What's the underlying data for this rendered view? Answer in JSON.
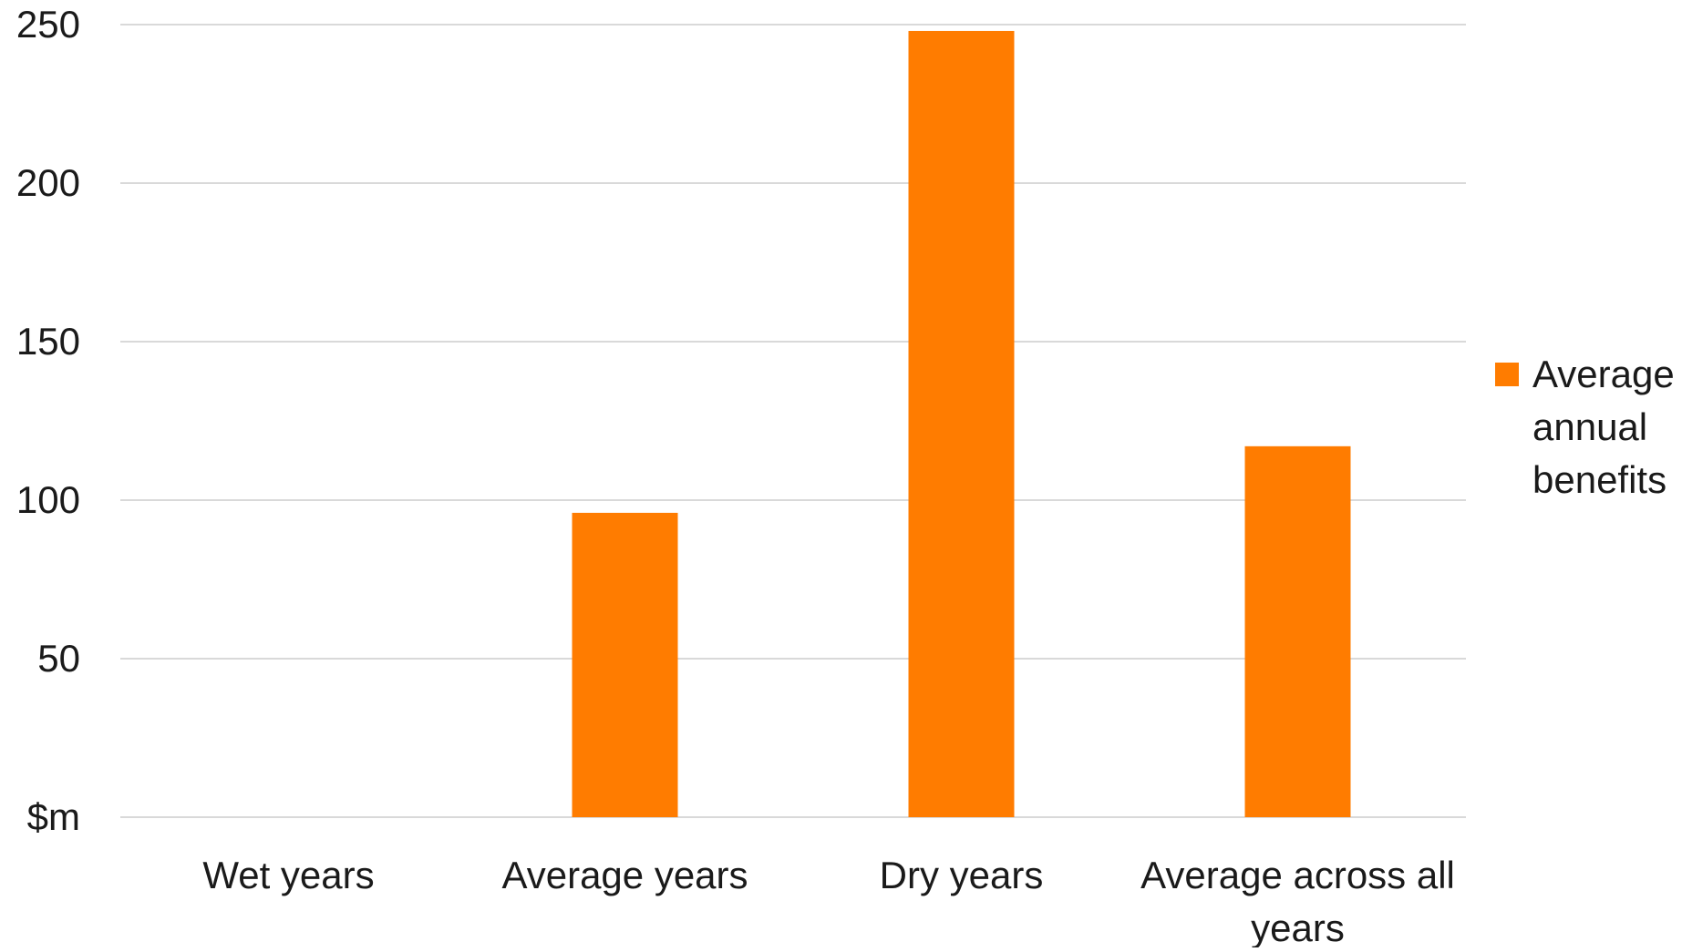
{
  "chart_data": {
    "type": "bar",
    "categories": [
      [
        "Wet years"
      ],
      [
        "Average years"
      ],
      [
        "Dry years"
      ],
      [
        "Average across all",
        "years"
      ]
    ],
    "series": [
      {
        "name": [
          "Average",
          "annual",
          "benefits"
        ],
        "values": [
          0,
          96,
          248,
          117
        ],
        "color": "#ff7c00"
      }
    ],
    "ylim": [
      0,
      250
    ],
    "yticks": [
      0,
      50,
      100,
      150,
      200,
      250
    ],
    "ytick_labels": [
      "$m",
      "50",
      "100",
      "150",
      "200",
      "250"
    ],
    "grid": true,
    "grid_color": "#d9d9d9",
    "legend_position": "right"
  }
}
